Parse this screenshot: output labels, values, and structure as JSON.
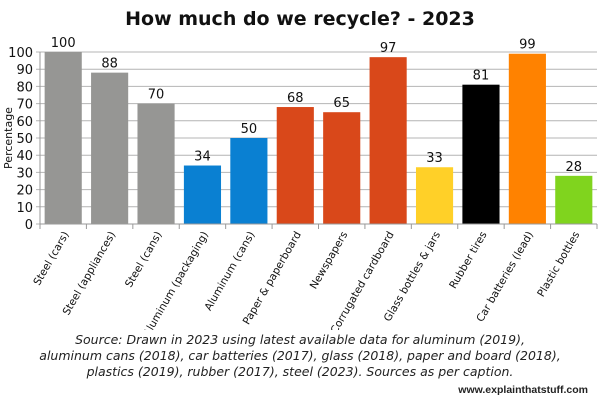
{
  "chart_data": {
    "type": "bar",
    "title": "How much do we recycle? - 2023",
    "xlabel": "",
    "ylabel": "Percentage",
    "ylim": [
      0,
      100
    ],
    "yticks": [
      0,
      10,
      20,
      30,
      40,
      50,
      60,
      70,
      80,
      90,
      100
    ],
    "grid": true,
    "categories": [
      "Steel (cars)",
      "Steel (appliances)",
      "Steel (cans)",
      "Aluminum (packaging)",
      "Aluminum (cans)",
      "Paper & paperboard",
      "Newspapers",
      "Corrugated cardboard",
      "Glass bottles & jars",
      "Rubber tires",
      "Car batteries (lead)",
      "Plastic bottles"
    ],
    "values": [
      100,
      88,
      70,
      34,
      50,
      68,
      65,
      97,
      33,
      81,
      99,
      28
    ],
    "colors": [
      "#969694",
      "#969694",
      "#969694",
      "#0a80d2",
      "#0a80d2",
      "#d9481a",
      "#d9481a",
      "#d9481a",
      "#ffd028",
      "#000000",
      "#ff8200",
      "#80d41e"
    ]
  },
  "source_lines": [
    "Source: Drawn in 2023 using latest available data for aluminum (2019),",
    "aluminum cans (2018), car batteries (2017), glass (2018), paper and board (2018),",
    "plastics (2019), rubber (2017), steel (2023). Sources as per caption."
  ],
  "website": "www.explainthatstuff.com"
}
